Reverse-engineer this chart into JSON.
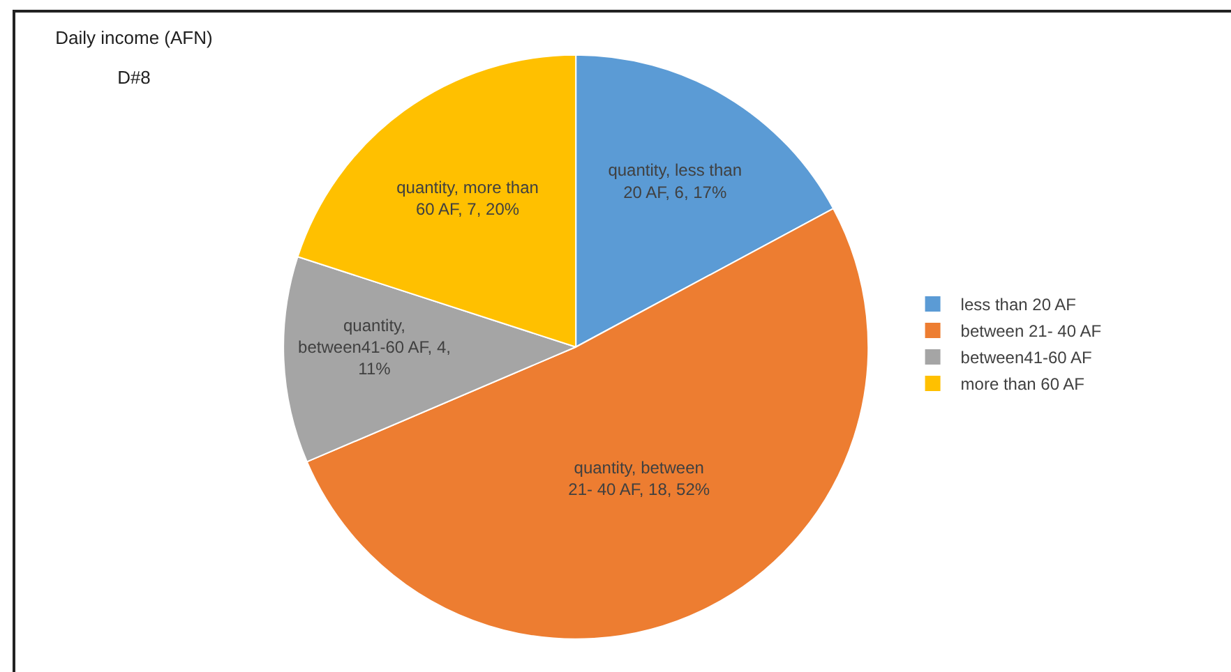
{
  "chart_data": {
    "type": "pie",
    "title": "Daily income (AFN)",
    "subtitle": "D#8",
    "categories": [
      "less than 20 AF",
      "between 21- 40 AF",
      "between41-60 AF",
      "more than 60 AF"
    ],
    "values": [
      6,
      18,
      4,
      7
    ],
    "colors": [
      "#5b9bd5",
      "#ed7d31",
      "#a5a5a5",
      "#ffc000"
    ],
    "value_labels": [
      "quantity, less than 20 AF, 6, 17%",
      "quantity, between 21- 40 AF, 18, 52%",
      "quantity, between41-60 AF, 4, 11%",
      "quantity, more than 60 AF, 7, 20%"
    ],
    "legend": "right"
  }
}
